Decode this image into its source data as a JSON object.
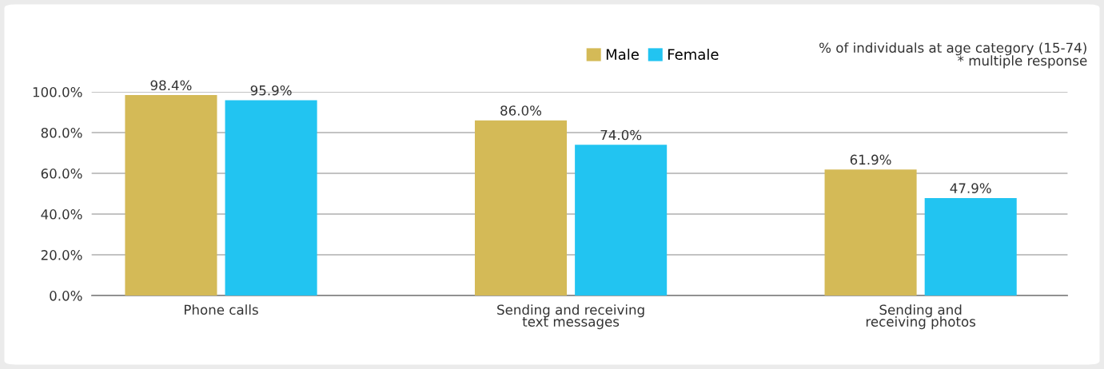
{
  "chart_data": {
    "type": "bar",
    "categories": [
      "Phone calls",
      "Sending and receiving\ntext messages",
      "Sending and\nreceiving photos"
    ],
    "series": [
      {
        "name": "Male",
        "color": "#d4ba57",
        "values": [
          98.4,
          86.0,
          61.9
        ],
        "value_labels": [
          "98.4%",
          "86.0%",
          "61.9%"
        ]
      },
      {
        "name": "Female",
        "color": "#22c4f1",
        "values": [
          95.9,
          74.0,
          47.9
        ],
        "value_labels": [
          "95.9%",
          "74.0%",
          "47.9%"
        ]
      }
    ],
    "ylim": [
      0,
      100
    ],
    "yticks": [
      {
        "value": 0,
        "label": "0.0%"
      },
      {
        "value": 20,
        "label": "20.0%"
      },
      {
        "value": 40,
        "label": "40.0%"
      },
      {
        "value": 60,
        "label": "60.0%"
      },
      {
        "value": 80,
        "label": "80.0%"
      },
      {
        "value": 100,
        "label": "100.0%"
      }
    ],
    "grid": "y",
    "legend": "top",
    "annotations": [
      "% of individuals at age category (15-74)\n* multiple response"
    ]
  }
}
